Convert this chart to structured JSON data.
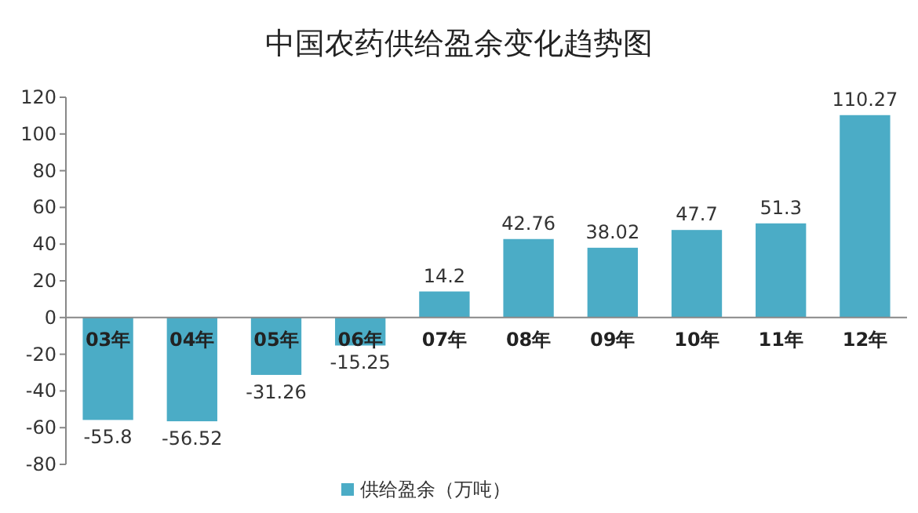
{
  "chart_data": {
    "type": "bar",
    "title": "中国农药供给盈余变化趋势图",
    "categories": [
      "03年",
      "04年",
      "05年",
      "06年",
      "07年",
      "08年",
      "09年",
      "10年",
      "11年",
      "12年"
    ],
    "series": [
      {
        "name": "供给盈余（万吨）",
        "color": "#4bacc6",
        "values": [
          -55.8,
          -56.52,
          -31.26,
          -15.25,
          14.2,
          42.76,
          38.02,
          47.7,
          51.3,
          110.27
        ]
      }
    ],
    "ylim": [
      -80,
      120
    ],
    "yticks": [
      -80,
      -60,
      -40,
      -20,
      0,
      20,
      40,
      60,
      80,
      100,
      120
    ],
    "data_labels": true,
    "legend": "bottom",
    "grid": false
  }
}
